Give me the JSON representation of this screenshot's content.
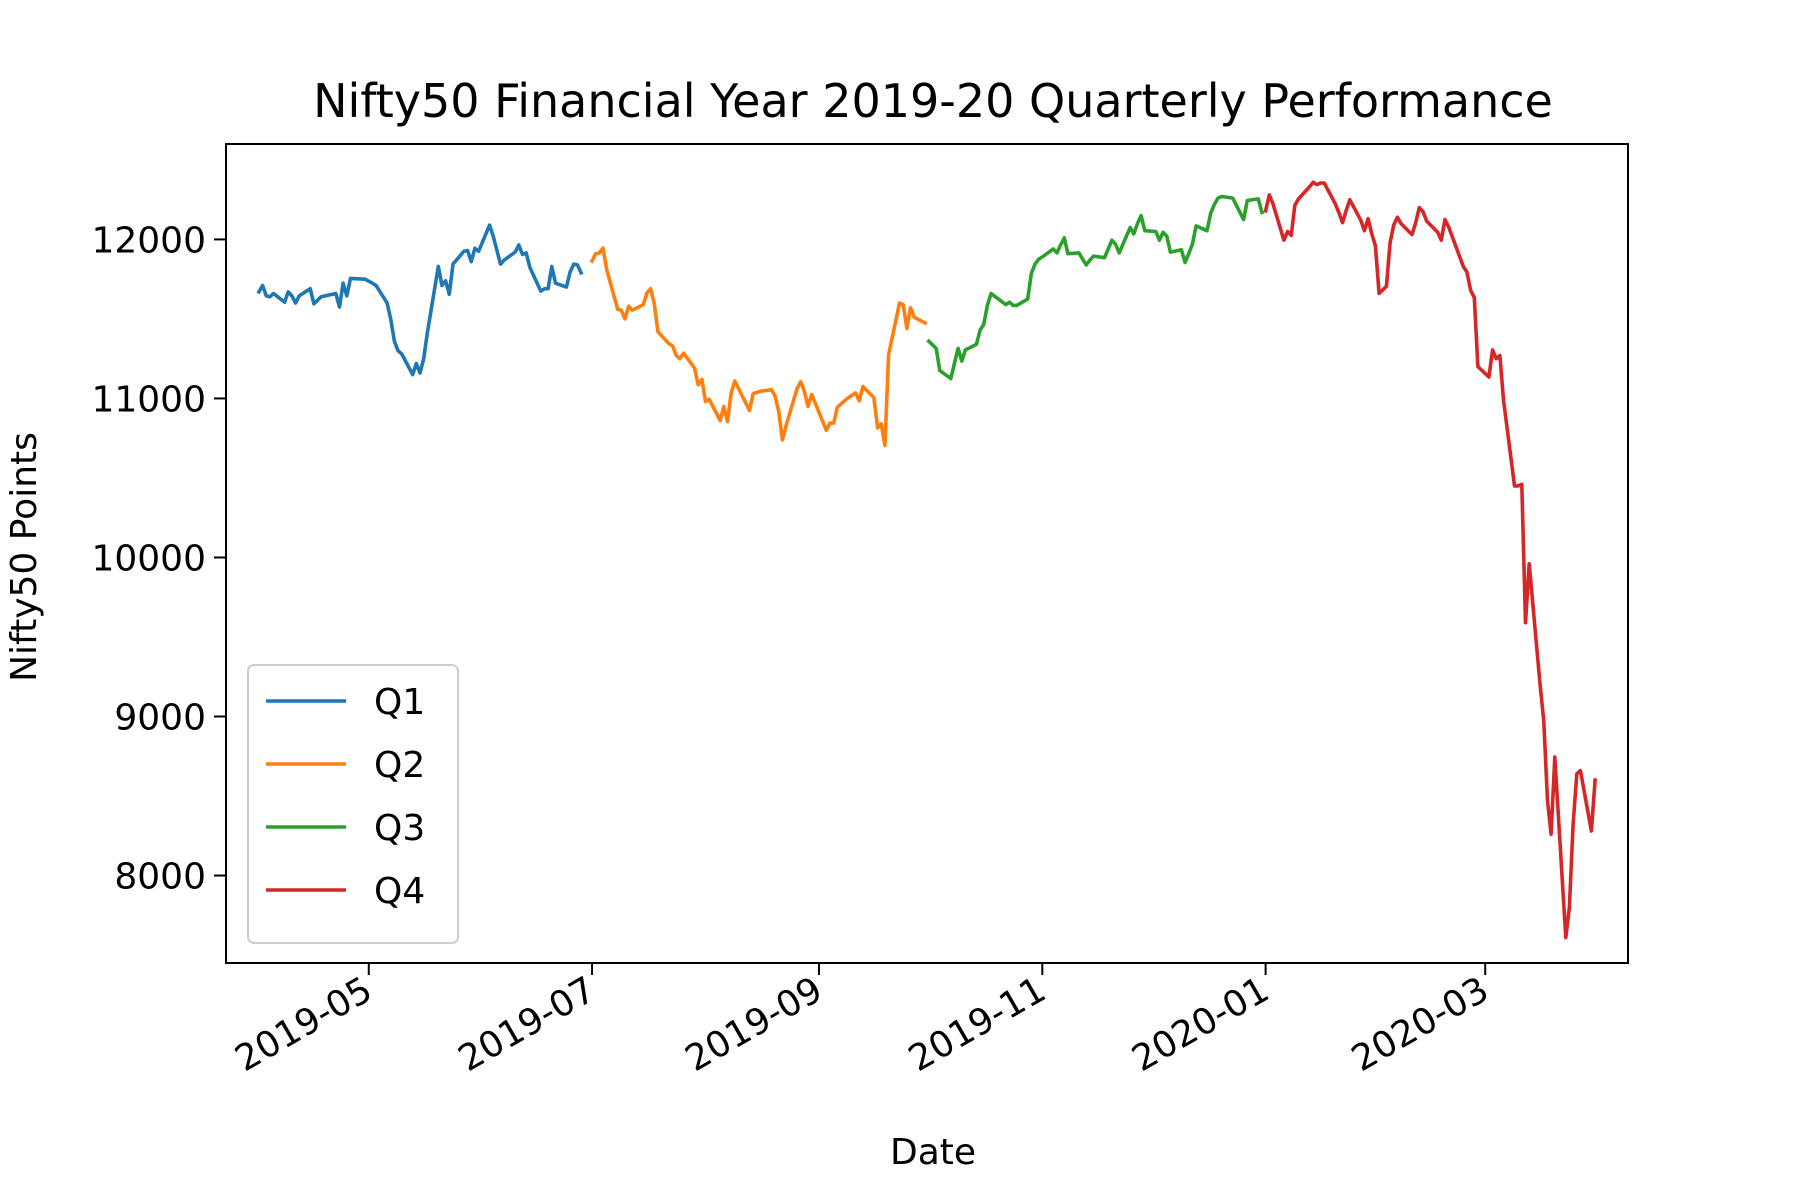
{
  "chart_data": {
    "type": "line",
    "title": "Nifty50 Financial Year 2019-20 Quarterly Performance",
    "xlabel": "Date",
    "ylabel": "Nifty50 Points",
    "x_tick_labels": [
      "2019-05",
      "2019-07",
      "2019-09",
      "2019-11",
      "2020-01",
      "2020-03"
    ],
    "y_ticks": [
      8000,
      9000,
      10000,
      11000,
      12000
    ],
    "xlim": [
      "2019-03-23",
      "2020-04-09"
    ],
    "ylim": [
      7450,
      12600
    ],
    "grid": false,
    "legend_position": "lower-left",
    "series": [
      {
        "name": "Q1",
        "color": "#1f77b4",
        "points": [
          [
            "2019-04-01",
            11670
          ],
          [
            "2019-04-02",
            11710
          ],
          [
            "2019-04-03",
            11645
          ],
          [
            "2019-04-04",
            11640
          ],
          [
            "2019-04-05",
            11660
          ],
          [
            "2019-04-08",
            11605
          ],
          [
            "2019-04-09",
            11670
          ],
          [
            "2019-04-10",
            11645
          ],
          [
            "2019-04-11",
            11600
          ],
          [
            "2019-04-12",
            11645
          ],
          [
            "2019-04-15",
            11690
          ],
          [
            "2019-04-16",
            11595
          ],
          [
            "2019-04-18",
            11640
          ],
          [
            "2019-04-22",
            11660
          ],
          [
            "2019-04-23",
            11575
          ],
          [
            "2019-04-24",
            11725
          ],
          [
            "2019-04-25",
            11645
          ],
          [
            "2019-04-26",
            11755
          ],
          [
            "2019-04-30",
            11750
          ],
          [
            "2019-05-02",
            11725
          ],
          [
            "2019-05-03",
            11710
          ],
          [
            "2019-05-06",
            11600
          ],
          [
            "2019-05-07",
            11500
          ],
          [
            "2019-05-08",
            11360
          ],
          [
            "2019-05-09",
            11300
          ],
          [
            "2019-05-10",
            11280
          ],
          [
            "2019-05-13",
            11150
          ],
          [
            "2019-05-14",
            11220
          ],
          [
            "2019-05-15",
            11160
          ],
          [
            "2019-05-16",
            11250
          ],
          [
            "2019-05-17",
            11410
          ],
          [
            "2019-05-20",
            11830
          ],
          [
            "2019-05-21",
            11710
          ],
          [
            "2019-05-22",
            11740
          ],
          [
            "2019-05-23",
            11655
          ],
          [
            "2019-05-24",
            11845
          ],
          [
            "2019-05-27",
            11925
          ],
          [
            "2019-05-28",
            11930
          ],
          [
            "2019-05-29",
            11860
          ],
          [
            "2019-05-30",
            11945
          ],
          [
            "2019-05-31",
            11925
          ],
          [
            "2019-06-03",
            12090
          ],
          [
            "2019-06-04",
            12020
          ],
          [
            "2019-06-06",
            11845
          ],
          [
            "2019-06-07",
            11870
          ],
          [
            "2019-06-10",
            11920
          ],
          [
            "2019-06-11",
            11965
          ],
          [
            "2019-06-12",
            11905
          ],
          [
            "2019-06-13",
            11915
          ],
          [
            "2019-06-14",
            11825
          ],
          [
            "2019-06-17",
            11675
          ],
          [
            "2019-06-18",
            11690
          ],
          [
            "2019-06-19",
            11690
          ],
          [
            "2019-06-20",
            11830
          ],
          [
            "2019-06-21",
            11725
          ],
          [
            "2019-06-24",
            11700
          ],
          [
            "2019-06-25",
            11795
          ],
          [
            "2019-06-26",
            11845
          ],
          [
            "2019-06-27",
            11840
          ],
          [
            "2019-06-28",
            11790
          ]
        ]
      },
      {
        "name": "Q2",
        "color": "#ff7f0e",
        "points": [
          [
            "2019-07-01",
            11865
          ],
          [
            "2019-07-02",
            11910
          ],
          [
            "2019-07-03",
            11915
          ],
          [
            "2019-07-04",
            11945
          ],
          [
            "2019-07-05",
            11810
          ],
          [
            "2019-07-08",
            11560
          ],
          [
            "2019-07-09",
            11555
          ],
          [
            "2019-07-10",
            11500
          ],
          [
            "2019-07-11",
            11580
          ],
          [
            "2019-07-12",
            11555
          ],
          [
            "2019-07-15",
            11590
          ],
          [
            "2019-07-16",
            11665
          ],
          [
            "2019-07-17",
            11690
          ],
          [
            "2019-07-18",
            11595
          ],
          [
            "2019-07-19",
            11420
          ],
          [
            "2019-07-22",
            11345
          ],
          [
            "2019-07-23",
            11330
          ],
          [
            "2019-07-24",
            11270
          ],
          [
            "2019-07-25",
            11250
          ],
          [
            "2019-07-26",
            11285
          ],
          [
            "2019-07-29",
            11190
          ],
          [
            "2019-07-30",
            11085
          ],
          [
            "2019-07-31",
            11120
          ],
          [
            "2019-08-01",
            10980
          ],
          [
            "2019-08-02",
            10995
          ],
          [
            "2019-08-05",
            10860
          ],
          [
            "2019-08-06",
            10950
          ],
          [
            "2019-08-07",
            10855
          ],
          [
            "2019-08-08",
            11035
          ],
          [
            "2019-08-09",
            11110
          ],
          [
            "2019-08-13",
            10925
          ],
          [
            "2019-08-14",
            11030
          ],
          [
            "2019-08-16",
            11045
          ],
          [
            "2019-08-19",
            11055
          ],
          [
            "2019-08-20",
            11015
          ],
          [
            "2019-08-21",
            10920
          ],
          [
            "2019-08-22",
            10740
          ],
          [
            "2019-08-23",
            10830
          ],
          [
            "2019-08-26",
            11060
          ],
          [
            "2019-08-27",
            11105
          ],
          [
            "2019-08-28",
            11045
          ],
          [
            "2019-08-29",
            10950
          ],
          [
            "2019-08-30",
            11025
          ],
          [
            "2019-09-03",
            10800
          ],
          [
            "2019-09-04",
            10845
          ],
          [
            "2019-09-05",
            10845
          ],
          [
            "2019-09-06",
            10945
          ],
          [
            "2019-09-09",
            11005
          ],
          [
            "2019-09-11",
            11035
          ],
          [
            "2019-09-12",
            10985
          ],
          [
            "2019-09-13",
            11075
          ],
          [
            "2019-09-16",
            11005
          ],
          [
            "2019-09-17",
            10815
          ],
          [
            "2019-09-18",
            10840
          ],
          [
            "2019-09-19",
            10705
          ],
          [
            "2019-09-20",
            11275
          ],
          [
            "2019-09-23",
            11600
          ],
          [
            "2019-09-24",
            11590
          ],
          [
            "2019-09-25",
            11440
          ],
          [
            "2019-09-26",
            11570
          ],
          [
            "2019-09-27",
            11510
          ],
          [
            "2019-09-30",
            11475
          ]
        ]
      },
      {
        "name": "Q3",
        "color": "#2ca02c",
        "points": [
          [
            "2019-10-01",
            11360
          ],
          [
            "2019-10-03",
            11315
          ],
          [
            "2019-10-04",
            11175
          ],
          [
            "2019-10-07",
            11125
          ],
          [
            "2019-10-09",
            11315
          ],
          [
            "2019-10-10",
            11235
          ],
          [
            "2019-10-11",
            11305
          ],
          [
            "2019-10-14",
            11340
          ],
          [
            "2019-10-15",
            11430
          ],
          [
            "2019-10-16",
            11465
          ],
          [
            "2019-10-17",
            11585
          ],
          [
            "2019-10-18",
            11660
          ],
          [
            "2019-10-22",
            11590
          ],
          [
            "2019-10-23",
            11605
          ],
          [
            "2019-10-24",
            11585
          ],
          [
            "2019-10-25",
            11585
          ],
          [
            "2019-10-28",
            11625
          ],
          [
            "2019-10-29",
            11785
          ],
          [
            "2019-10-30",
            11845
          ],
          [
            "2019-10-31",
            11875
          ],
          [
            "2019-11-01",
            11890
          ],
          [
            "2019-11-04",
            11940
          ],
          [
            "2019-11-05",
            11915
          ],
          [
            "2019-11-06",
            11965
          ],
          [
            "2019-11-07",
            12010
          ],
          [
            "2019-11-08",
            11910
          ],
          [
            "2019-11-11",
            11915
          ],
          [
            "2019-11-13",
            11840
          ],
          [
            "2019-11-14",
            11870
          ],
          [
            "2019-11-15",
            11895
          ],
          [
            "2019-11-18",
            11885
          ],
          [
            "2019-11-19",
            11940
          ],
          [
            "2019-11-20",
            11995
          ],
          [
            "2019-11-21",
            11970
          ],
          [
            "2019-11-22",
            11915
          ],
          [
            "2019-11-25",
            12075
          ],
          [
            "2019-11-26",
            12035
          ],
          [
            "2019-11-27",
            12100
          ],
          [
            "2019-11-28",
            12150
          ],
          [
            "2019-11-29",
            12055
          ],
          [
            "2019-12-02",
            12050
          ],
          [
            "2019-12-03",
            11995
          ],
          [
            "2019-12-04",
            12045
          ],
          [
            "2019-12-05",
            12020
          ],
          [
            "2019-12-06",
            11920
          ],
          [
            "2019-12-09",
            11935
          ],
          [
            "2019-12-10",
            11855
          ],
          [
            "2019-12-11",
            11910
          ],
          [
            "2019-12-12",
            11970
          ],
          [
            "2019-12-13",
            12085
          ],
          [
            "2019-12-16",
            12055
          ],
          [
            "2019-12-17",
            12165
          ],
          [
            "2019-12-18",
            12220
          ],
          [
            "2019-12-19",
            12260
          ],
          [
            "2019-12-20",
            12270
          ],
          [
            "2019-12-23",
            12260
          ],
          [
            "2019-12-24",
            12215
          ],
          [
            "2019-12-26",
            12125
          ],
          [
            "2019-12-27",
            12245
          ],
          [
            "2019-12-30",
            12255
          ],
          [
            "2019-12-31",
            12170
          ]
        ]
      },
      {
        "name": "Q4",
        "color": "#d62728",
        "points": [
          [
            "2020-01-01",
            12180
          ],
          [
            "2020-01-02",
            12280
          ],
          [
            "2020-01-03",
            12225
          ],
          [
            "2020-01-06",
            11995
          ],
          [
            "2020-01-07",
            12050
          ],
          [
            "2020-01-08",
            12025
          ],
          [
            "2020-01-09",
            12215
          ],
          [
            "2020-01-10",
            12255
          ],
          [
            "2020-01-13",
            12330
          ],
          [
            "2020-01-14",
            12360
          ],
          [
            "2020-01-15",
            12345
          ],
          [
            "2020-01-16",
            12355
          ],
          [
            "2020-01-17",
            12355
          ],
          [
            "2020-01-20",
            12225
          ],
          [
            "2020-01-21",
            12170
          ],
          [
            "2020-01-22",
            12105
          ],
          [
            "2020-01-23",
            12180
          ],
          [
            "2020-01-24",
            12250
          ],
          [
            "2020-01-27",
            12120
          ],
          [
            "2020-01-28",
            12055
          ],
          [
            "2020-01-29",
            12130
          ],
          [
            "2020-01-30",
            12035
          ],
          [
            "2020-01-31",
            11960
          ],
          [
            "2020-02-01",
            11660
          ],
          [
            "2020-02-03",
            11705
          ],
          [
            "2020-02-04",
            11980
          ],
          [
            "2020-02-05",
            12090
          ],
          [
            "2020-02-06",
            12140
          ],
          [
            "2020-02-07",
            12100
          ],
          [
            "2020-02-10",
            12030
          ],
          [
            "2020-02-11",
            12105
          ],
          [
            "2020-02-12",
            12200
          ],
          [
            "2020-02-13",
            12175
          ],
          [
            "2020-02-14",
            12115
          ],
          [
            "2020-02-17",
            12045
          ],
          [
            "2020-02-18",
            11995
          ],
          [
            "2020-02-19",
            12125
          ],
          [
            "2020-02-20",
            12080
          ],
          [
            "2020-02-24",
            11830
          ],
          [
            "2020-02-25",
            11795
          ],
          [
            "2020-02-26",
            11680
          ],
          [
            "2020-02-27",
            11635
          ],
          [
            "2020-02-28",
            11200
          ],
          [
            "2020-03-02",
            11135
          ],
          [
            "2020-03-03",
            11305
          ],
          [
            "2020-03-04",
            11250
          ],
          [
            "2020-03-05",
            11270
          ],
          [
            "2020-03-06",
            10990
          ],
          [
            "2020-03-09",
            10450
          ],
          [
            "2020-03-10",
            10450
          ],
          [
            "2020-03-11",
            10460
          ],
          [
            "2020-03-12",
            9590
          ],
          [
            "2020-03-13",
            9960
          ],
          [
            "2020-03-16",
            9200
          ],
          [
            "2020-03-17",
            8970
          ],
          [
            "2020-03-18",
            8470
          ],
          [
            "2020-03-19",
            8260
          ],
          [
            "2020-03-20",
            8745
          ],
          [
            "2020-03-23",
            7610
          ],
          [
            "2020-03-24",
            7800
          ],
          [
            "2020-03-25",
            8320
          ],
          [
            "2020-03-26",
            8640
          ],
          [
            "2020-03-27",
            8660
          ],
          [
            "2020-03-30",
            8280
          ],
          [
            "2020-03-31",
            8600
          ]
        ]
      }
    ]
  }
}
